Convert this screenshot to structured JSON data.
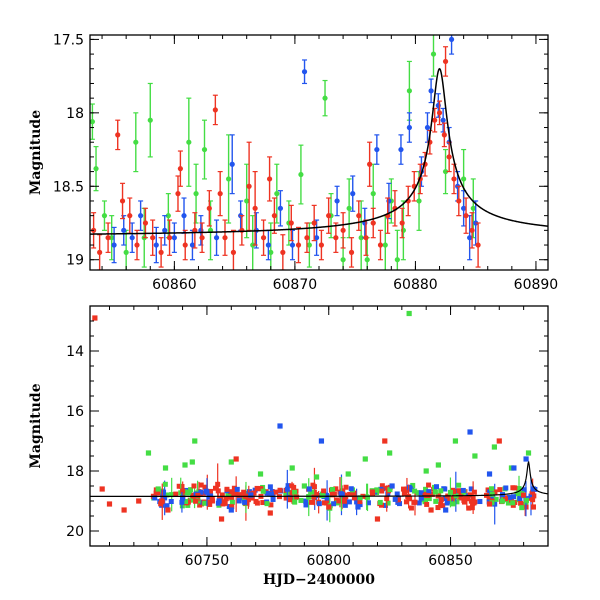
{
  "chart_data": [
    {
      "type": "scatter",
      "title": "",
      "xlabel": "",
      "ylabel": "Magnitude",
      "xlim": [
        60853,
        60891
      ],
      "ylim": [
        19.07,
        17.47
      ],
      "y_inverted": true,
      "xticks": [
        60860,
        60870,
        60880,
        60890
      ],
      "yticks": [
        17.5,
        18,
        18.5,
        19
      ],
      "series": [
        {
          "color": "#44dd44",
          "points": [
            [
              60853.2,
              18.06,
              0.12
            ],
            [
              60853.5,
              18.38,
              0.15
            ],
            [
              60854.2,
              18.7,
              0.1
            ],
            [
              60856.8,
              18.2,
              0.2
            ],
            [
              60858.0,
              18.05,
              0.25
            ],
            [
              60859.5,
              18.7,
              0.15
            ],
            [
              60861.2,
              18.2,
              0.3
            ],
            [
              60861.8,
              18.55,
              0.2
            ],
            [
              60862.5,
              18.25,
              0.2
            ],
            [
              60864.5,
              18.45,
              0.3
            ],
            [
              60866.0,
              18.6,
              0.25
            ],
            [
              60866.5,
              18.9,
              0.2
            ],
            [
              60868.0,
              18.95,
              0.2
            ],
            [
              60869.5,
              18.75,
              0.15
            ],
            [
              60870.5,
              18.42,
              0.2
            ],
            [
              60871.2,
              18.9,
              0.15
            ],
            [
              60872.5,
              17.9,
              0.12
            ],
            [
              60873.0,
              18.7,
              0.15
            ],
            [
              60874.5,
              18.65,
              0.2
            ],
            [
              60875.5,
              18.85,
              0.25
            ],
            [
              60876.5,
              18.55,
              0.2
            ],
            [
              60877.5,
              18.9,
              0.2
            ],
            [
              60878.0,
              18.6,
              0.15
            ],
            [
              60879.5,
              17.85,
              0.2
            ],
            [
              60880.3,
              18.6,
              0.2
            ],
            [
              60881.5,
              17.6,
              0.15
            ],
            [
              60882.5,
              18.4,
              0.15
            ],
            [
              60884.0,
              18.45,
              0.2
            ],
            [
              60884.8,
              18.65,
              0.2
            ],
            [
              60854.8,
              18.85,
              0.15
            ],
            [
              60856.0,
              18.95,
              0.15
            ],
            [
              60857.5,
              18.85,
              0.2
            ],
            [
              60863.0,
              18.8,
              0.2
            ],
            [
              60868.5,
              18.55,
              0.2
            ],
            [
              60874.0,
              19.0,
              0.15
            ],
            [
              60876.0,
              19.0,
              0.15
            ],
            [
              60878.5,
              19.0,
              0.2
            ],
            [
              60879.0,
              18.8,
              0.2
            ]
          ]
        },
        {
          "color": "#2255ee",
          "points": [
            [
              60855.0,
              18.9,
              0.12
            ],
            [
              60855.8,
              18.8,
              0.1
            ],
            [
              60856.5,
              18.85,
              0.1
            ],
            [
              60857.2,
              18.7,
              0.1
            ],
            [
              60858.5,
              18.9,
              0.12
            ],
            [
              60859.2,
              18.8,
              0.1
            ],
            [
              60860.0,
              18.85,
              0.1
            ],
            [
              60860.8,
              18.7,
              0.12
            ],
            [
              60861.5,
              18.9,
              0.1
            ],
            [
              60862.2,
              18.8,
              0.1
            ],
            [
              60863.5,
              18.85,
              0.12
            ],
            [
              60864.8,
              18.35,
              0.2
            ],
            [
              60865.5,
              18.7,
              0.1
            ],
            [
              60866.8,
              18.8,
              0.12
            ],
            [
              60867.8,
              18.9,
              0.1
            ],
            [
              60868.8,
              18.65,
              0.12
            ],
            [
              60869.8,
              18.9,
              0.1
            ],
            [
              60870.8,
              17.72,
              0.08
            ],
            [
              60871.8,
              18.85,
              0.12
            ],
            [
              60873.5,
              18.6,
              0.1
            ],
            [
              60874.8,
              18.55,
              0.12
            ],
            [
              60875.8,
              18.75,
              0.1
            ],
            [
              60876.8,
              18.25,
              0.1
            ],
            [
              60877.8,
              18.6,
              0.12
            ],
            [
              60878.8,
              18.25,
              0.1
            ],
            [
              60879.5,
              18.1,
              0.1
            ],
            [
              60880.5,
              18.4,
              0.1
            ],
            [
              60881.3,
              17.85,
              0.08
            ],
            [
              60881.9,
              17.95,
              0.08
            ],
            [
              60882.3,
              18.05,
              0.08
            ],
            [
              60882.8,
              18.2,
              0.1
            ],
            [
              60883.5,
              18.5,
              0.1
            ],
            [
              60884.0,
              18.65,
              0.12
            ],
            [
              60884.5,
              18.85,
              0.15
            ],
            [
              60885.0,
              18.75,
              0.15
            ],
            [
              60883.0,
              17.5,
              0.1
            ],
            [
              60881.0,
              18.1,
              0.1
            ]
          ]
        },
        {
          "color": "#ee3322",
          "points": [
            [
              60853.3,
              18.8,
              0.12
            ],
            [
              60853.8,
              18.95,
              0.12
            ],
            [
              60854.5,
              18.85,
              0.1
            ],
            [
              60855.3,
              18.15,
              0.1
            ],
            [
              60855.7,
              18.6,
              0.12
            ],
            [
              60856.3,
              18.7,
              0.12
            ],
            [
              60856.9,
              18.9,
              0.1
            ],
            [
              60857.6,
              18.75,
              0.1
            ],
            [
              60858.2,
              18.85,
              0.12
            ],
            [
              60858.9,
              18.95,
              0.1
            ],
            [
              60859.6,
              18.85,
              0.12
            ],
            [
              60860.3,
              18.55,
              0.12
            ],
            [
              60860.9,
              18.9,
              0.1
            ],
            [
              60861.7,
              18.8,
              0.12
            ],
            [
              60862.3,
              18.85,
              0.1
            ],
            [
              60862.9,
              18.65,
              0.12
            ],
            [
              60863.4,
              17.98,
              0.1
            ],
            [
              60864.2,
              18.85,
              0.12
            ],
            [
              60864.9,
              18.95,
              0.15
            ],
            [
              60865.6,
              18.8,
              0.1
            ],
            [
              60866.2,
              18.5,
              0.3
            ],
            [
              60866.7,
              18.65,
              0.25
            ],
            [
              60867.4,
              18.85,
              0.12
            ],
            [
              60868.3,
              18.7,
              0.12
            ],
            [
              60869.0,
              18.95,
              0.12
            ],
            [
              60869.7,
              18.75,
              0.12
            ],
            [
              60870.3,
              18.9,
              0.12
            ],
            [
              60871.0,
              18.85,
              0.1
            ],
            [
              60871.6,
              18.75,
              0.12
            ],
            [
              60872.2,
              18.9,
              0.1
            ],
            [
              60872.8,
              18.7,
              0.12
            ],
            [
              60873.4,
              18.85,
              0.1
            ],
            [
              60874.0,
              18.8,
              0.12
            ],
            [
              60874.7,
              18.95,
              0.1
            ],
            [
              60875.3,
              18.7,
              0.1
            ],
            [
              60875.9,
              18.85,
              0.12
            ],
            [
              60876.5,
              18.75,
              0.1
            ],
            [
              60877.1,
              18.9,
              0.1
            ],
            [
              60877.7,
              18.7,
              0.12
            ],
            [
              60878.3,
              18.65,
              0.12
            ],
            [
              60878.9,
              18.75,
              0.1
            ],
            [
              60879.4,
              18.6,
              0.1
            ],
            [
              60879.9,
              18.5,
              0.1
            ],
            [
              60880.4,
              18.45,
              0.1
            ],
            [
              60880.8,
              18.35,
              0.08
            ],
            [
              60881.2,
              18.2,
              0.08
            ],
            [
              60881.6,
              18.05,
              0.08
            ],
            [
              60882.0,
              18.0,
              0.08
            ],
            [
              60882.4,
              18.15,
              0.08
            ],
            [
              60882.8,
              18.3,
              0.1
            ],
            [
              60883.2,
              18.45,
              0.1
            ],
            [
              60883.6,
              18.6,
              0.1
            ],
            [
              60884.2,
              18.7,
              0.12
            ],
            [
              60884.7,
              18.8,
              0.12
            ],
            [
              60885.2,
              18.9,
              0.15
            ],
            [
              60882.5,
              17.65,
              0.1
            ],
            [
              60876.2,
              18.35,
              0.15
            ],
            [
              60860.5,
              18.38,
              0.12
            ],
            [
              60863.8,
              18.55,
              0.15
            ],
            [
              60867.9,
              18.45,
              0.15
            ]
          ]
        }
      ],
      "model_curve": {
        "color": "#000000",
        "baseline": 18.85,
        "peak_x": 60882.0,
        "peak_mag": 17.7,
        "width_days": 1.1,
        "x_range": [
          60853,
          60891
        ]
      }
    },
    {
      "type": "scatter",
      "title": "",
      "xlabel": "HJD−2400000",
      "ylabel": "Magnitude",
      "xlim": [
        60702,
        60890
      ],
      "ylim": [
        20.5,
        12.5
      ],
      "y_inverted": true,
      "xticks": [
        60750,
        60800,
        60850
      ],
      "yticks": [
        14,
        16,
        18,
        20
      ],
      "series": [
        {
          "color": "#44dd44",
          "points": [
            [
              60726,
              17.4
            ],
            [
              60733,
              17.9
            ],
            [
              60741,
              17.8
            ],
            [
              60744,
              17.7
            ],
            [
              60745,
              17.0
            ],
            [
              60760,
              17.7
            ],
            [
              60772,
              18.1
            ],
            [
              60785,
              17.9
            ],
            [
              60795,
              18.2
            ],
            [
              60808,
              18.1
            ],
            [
              60815,
              17.6
            ],
            [
              60825,
              17.4
            ],
            [
              60833,
              12.75
            ],
            [
              60840,
              18.0
            ],
            [
              60852,
              17.0
            ],
            [
              60860,
              17.5
            ],
            [
              60868,
              17.2
            ],
            [
              60875,
              17.9
            ],
            [
              60882,
              17.4
            ],
            [
              60730,
              18.6
            ],
            [
              60790,
              18.5
            ],
            [
              60845,
              17.8
            ]
          ]
        },
        {
          "color": "#2255ee",
          "points": [
            [
              60740,
              18.9
            ],
            [
              60755,
              19.0
            ],
            [
              60768,
              18.8
            ],
            [
              60780,
              16.5
            ],
            [
              60792,
              18.6
            ],
            [
              60797,
              17.0
            ],
            [
              60812,
              19.2
            ],
            [
              60826,
              18.5
            ],
            [
              60838,
              18.9
            ],
            [
              60848,
              19.3
            ],
            [
              60858,
              16.7
            ],
            [
              60866,
              18.1
            ],
            [
              60876,
              17.9
            ],
            [
              60881,
              17.6
            ],
            [
              60884,
              18.6
            ],
            [
              60760,
              19.3
            ]
          ]
        },
        {
          "color": "#ee3322",
          "points": [
            [
              60704,
              12.9
            ],
            [
              60707,
              18.6
            ],
            [
              60710,
              19.1
            ],
            [
              60716,
              19.3
            ],
            [
              60722,
              19.0
            ],
            [
              60762,
              17.6
            ],
            [
              60823,
              17.0
            ],
            [
              60870,
              17.0
            ],
            [
              60734,
              19.3
            ],
            [
              60756,
              19.6
            ],
            [
              60776,
              19.4
            ],
            [
              60800,
              19.2
            ],
            [
              60820,
              19.6
            ],
            [
              60842,
              19.3
            ],
            [
              60866,
              19.1
            ],
            [
              60884,
              19.2
            ]
          ]
        }
      ],
      "baseline_dense": {
        "x_start": 60728,
        "x_end": 60886,
        "mag": 18.85,
        "scatter": 0.45
      },
      "model_curve": {
        "color": "#000000",
        "baseline": 18.85,
        "peak_x": 60882.0,
        "peak_mag": 17.7,
        "width_days": 1.1,
        "x_range": [
          60702,
          60890
        ]
      }
    }
  ]
}
